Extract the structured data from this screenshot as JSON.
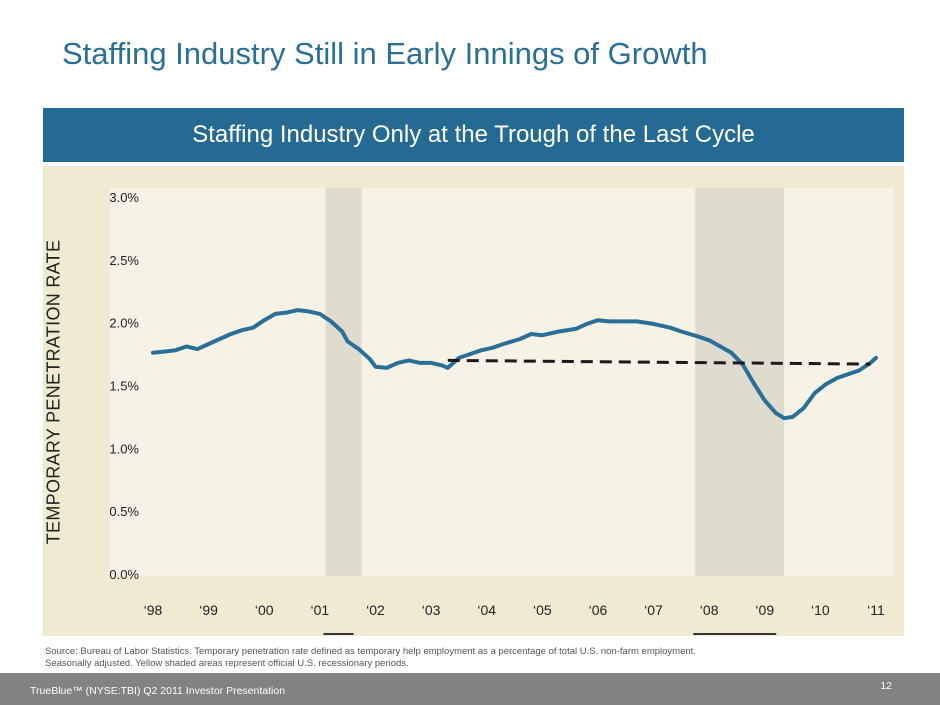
{
  "slide": {
    "title": "Staffing Industry Still in Early Innings of Growth",
    "banner": "Staffing Industry Only at the Trough of the Last Cycle",
    "source_line1": "Source: Bureau of Labor Statistics. Temporary penetration rate defined as temporary help employment as a percentage of total  U.S. non-farm employment.",
    "source_line2": "Seasonally adjusted. Yellow shaded areas represent official U.S. recessionary periods.",
    "footer": "TrueBlue™ (NYSE:TBI) Q2 2011 Investor Presentation",
    "page_number": "12"
  },
  "chart_data": {
    "type": "line",
    "title": "",
    "ylabel": "TEMPORARY PENETRATION RATE",
    "xlabel": "",
    "ylim": [
      0,
      3.0
    ],
    "xlim": [
      1998,
      2011
    ],
    "grid": false,
    "y_ticks": [
      {
        "value": 0.0,
        "label": "0.0%"
      },
      {
        "value": 0.5,
        "label": "0.5%"
      },
      {
        "value": 1.0,
        "label": "1.0%"
      },
      {
        "value": 1.5,
        "label": "1.5%"
      },
      {
        "value": 2.0,
        "label": "2.0%"
      },
      {
        "value": 2.5,
        "label": "2.5%"
      },
      {
        "value": 3.0,
        "label": "3.0%"
      }
    ],
    "x_ticks": [
      {
        "value": 1998,
        "label": "‘98"
      },
      {
        "value": 1999,
        "label": "‘99"
      },
      {
        "value": 2000,
        "label": "‘00"
      },
      {
        "value": 2001,
        "label": "‘01"
      },
      {
        "value": 2002,
        "label": "‘02"
      },
      {
        "value": 2003,
        "label": "‘03"
      },
      {
        "value": 2004,
        "label": "‘04"
      },
      {
        "value": 2005,
        "label": "‘05"
      },
      {
        "value": 2006,
        "label": "‘06"
      },
      {
        "value": 2007,
        "label": "‘07"
      },
      {
        "value": 2008,
        "label": "‘08"
      },
      {
        "value": 2009,
        "label": "‘09"
      },
      {
        "value": 2010,
        "label": "‘10"
      },
      {
        "value": 2011,
        "label": "‘11"
      }
    ],
    "recessions": [
      {
        "start": 2001.1,
        "end": 2001.75
      },
      {
        "start": 2007.75,
        "end": 2009.35
      }
    ],
    "series": [
      {
        "color": "#2a6f96",
        "style": "solid",
        "points": [
          [
            1998.0,
            1.76
          ],
          [
            1998.2,
            1.77
          ],
          [
            1998.4,
            1.78
          ],
          [
            1998.6,
            1.81
          ],
          [
            1998.8,
            1.79
          ],
          [
            1999.0,
            1.83
          ],
          [
            1999.2,
            1.87
          ],
          [
            1999.4,
            1.91
          ],
          [
            1999.6,
            1.94
          ],
          [
            1999.8,
            1.96
          ],
          [
            2000.0,
            2.02
          ],
          [
            2000.2,
            2.07
          ],
          [
            2000.4,
            2.08
          ],
          [
            2000.6,
            2.1
          ],
          [
            2000.8,
            2.09
          ],
          [
            2001.0,
            2.07
          ],
          [
            2001.2,
            2.01
          ],
          [
            2001.4,
            1.93
          ],
          [
            2001.5,
            1.85
          ],
          [
            2001.7,
            1.79
          ],
          [
            2001.9,
            1.71
          ],
          [
            2002.0,
            1.65
          ],
          [
            2002.2,
            1.64
          ],
          [
            2002.4,
            1.68
          ],
          [
            2002.6,
            1.7
          ],
          [
            2002.8,
            1.68
          ],
          [
            2003.0,
            1.68
          ],
          [
            2003.2,
            1.66
          ],
          [
            2003.3,
            1.64
          ],
          [
            2003.5,
            1.72
          ],
          [
            2003.7,
            1.75
          ],
          [
            2003.9,
            1.78
          ],
          [
            2004.1,
            1.8
          ],
          [
            2004.3,
            1.83
          ],
          [
            2004.6,
            1.87
          ],
          [
            2004.8,
            1.91
          ],
          [
            2005.0,
            1.9
          ],
          [
            2005.3,
            1.93
          ],
          [
            2005.6,
            1.95
          ],
          [
            2005.8,
            1.99
          ],
          [
            2006.0,
            2.02
          ],
          [
            2006.2,
            2.01
          ],
          [
            2006.5,
            2.01
          ],
          [
            2006.7,
            2.01
          ],
          [
            2007.0,
            1.99
          ],
          [
            2007.3,
            1.96
          ],
          [
            2007.5,
            1.93
          ],
          [
            2007.8,
            1.89
          ],
          [
            2008.0,
            1.86
          ],
          [
            2008.2,
            1.81
          ],
          [
            2008.4,
            1.76
          ],
          [
            2008.6,
            1.67
          ],
          [
            2008.8,
            1.52
          ],
          [
            2009.0,
            1.38
          ],
          [
            2009.2,
            1.28
          ],
          [
            2009.35,
            1.24
          ],
          [
            2009.5,
            1.25
          ],
          [
            2009.7,
            1.32
          ],
          [
            2009.9,
            1.44
          ],
          [
            2010.1,
            1.51
          ],
          [
            2010.3,
            1.56
          ],
          [
            2010.5,
            1.59
          ],
          [
            2010.7,
            1.62
          ],
          [
            2010.9,
            1.68
          ],
          [
            2011.0,
            1.72
          ]
        ]
      },
      {
        "color": "#1a1a1a",
        "style": "dashed",
        "points": [
          [
            2003.3,
            1.7
          ],
          [
            2010.9,
            1.67
          ]
        ]
      }
    ]
  }
}
